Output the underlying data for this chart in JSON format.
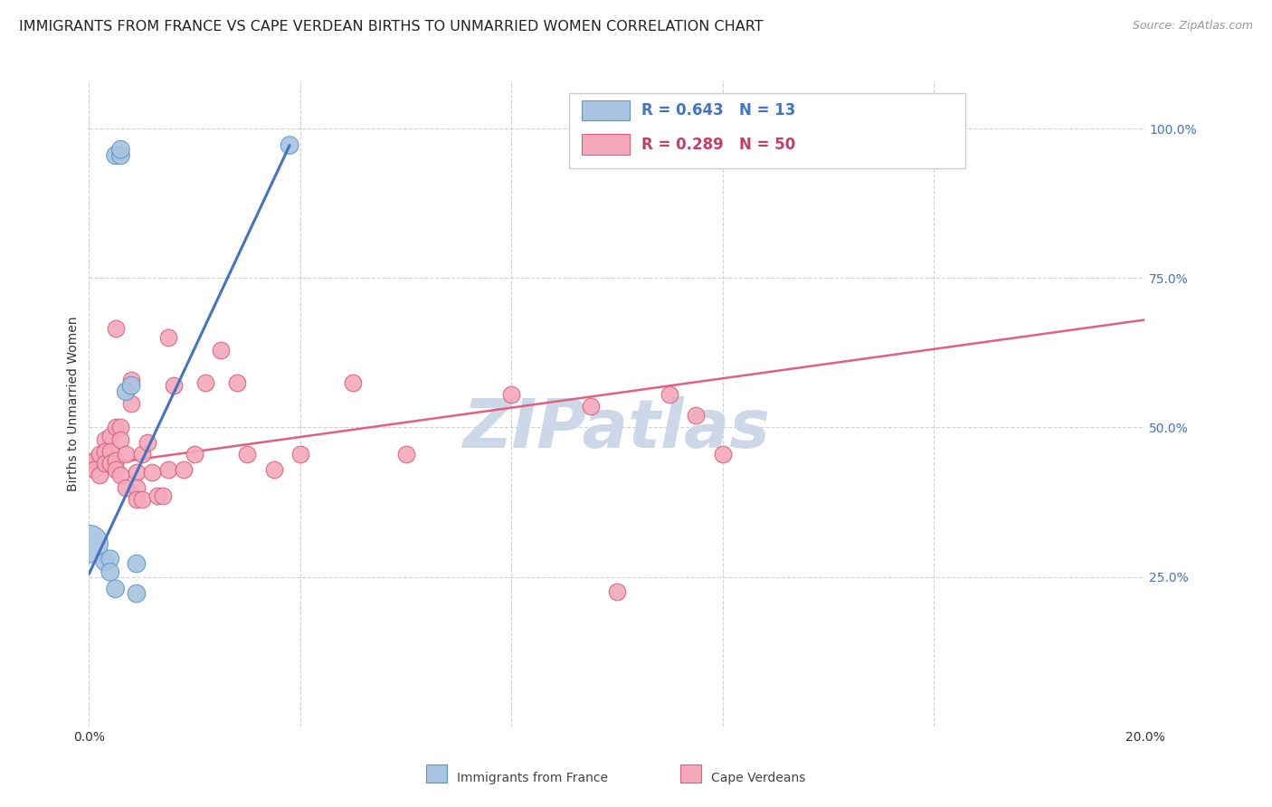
{
  "title": "IMMIGRANTS FROM FRANCE VS CAPE VERDEAN BIRTHS TO UNMARRIED WOMEN CORRELATION CHART",
  "source": "Source: ZipAtlas.com",
  "ylabel": "Births to Unmarried Women",
  "ytick_labels": [
    "100.0%",
    "75.0%",
    "50.0%",
    "25.0%"
  ],
  "xtick_positions": [
    0.0,
    0.04,
    0.08,
    0.12,
    0.16,
    0.2
  ],
  "ytick_positions": [
    1.0,
    0.75,
    0.5,
    0.25
  ],
  "xlim": [
    0.0,
    0.2
  ],
  "ylim": [
    0.0,
    1.08
  ],
  "france_R": 0.643,
  "france_N": 13,
  "capeverde_R": 0.289,
  "capeverde_N": 50,
  "france_color": "#a8c4e0",
  "france_edge": "#5a96c8",
  "capeverde_color": "#f4a8bc",
  "capeverde_edge": "#d8607a",
  "france_x": [
    0.0,
    0.003,
    0.004,
    0.004,
    0.005,
    0.005,
    0.006,
    0.006,
    0.007,
    0.008,
    0.009,
    0.009,
    0.038
  ],
  "france_y": [
    0.305,
    0.275,
    0.28,
    0.258,
    0.23,
    0.955,
    0.955,
    0.965,
    0.56,
    0.57,
    0.272,
    0.222,
    0.972
  ],
  "france_sizes": [
    900,
    200,
    200,
    200,
    200,
    200,
    200,
    200,
    200,
    200,
    200,
    200,
    200
  ],
  "capeverde_x": [
    0.0,
    0.001,
    0.001,
    0.002,
    0.002,
    0.003,
    0.003,
    0.003,
    0.004,
    0.004,
    0.004,
    0.005,
    0.005,
    0.005,
    0.005,
    0.006,
    0.006,
    0.006,
    0.007,
    0.007,
    0.008,
    0.008,
    0.009,
    0.009,
    0.009,
    0.01,
    0.01,
    0.011,
    0.012,
    0.013,
    0.014,
    0.015,
    0.015,
    0.016,
    0.018,
    0.02,
    0.022,
    0.025,
    0.028,
    0.03,
    0.035,
    0.04,
    0.05,
    0.06,
    0.08,
    0.095,
    0.1,
    0.11,
    0.115,
    0.12
  ],
  "capeverde_y": [
    0.44,
    0.445,
    0.43,
    0.455,
    0.42,
    0.48,
    0.46,
    0.44,
    0.485,
    0.46,
    0.44,
    0.665,
    0.5,
    0.445,
    0.43,
    0.5,
    0.48,
    0.42,
    0.455,
    0.4,
    0.58,
    0.54,
    0.425,
    0.4,
    0.38,
    0.455,
    0.38,
    0.475,
    0.425,
    0.385,
    0.385,
    0.65,
    0.43,
    0.57,
    0.43,
    0.455,
    0.575,
    0.63,
    0.575,
    0.455,
    0.43,
    0.455,
    0.575,
    0.455,
    0.555,
    0.535,
    0.225,
    0.555,
    0.52,
    0.455
  ],
  "blue_line_x": [
    0.0,
    0.038
  ],
  "blue_line_y": [
    0.255,
    0.972
  ],
  "pink_line_x": [
    0.0,
    0.2
  ],
  "pink_line_y": [
    0.435,
    0.68
  ],
  "legend_blue_text_color": "#4472c4",
  "legend_pink_text_color": "#c0406a",
  "watermark_text": "ZIPatlas",
  "watermark_color": "#ccd8e8",
  "background_color": "#ffffff",
  "grid_color": "#cccccc",
  "title_fontsize": 11.5,
  "axis_label_fontsize": 10,
  "tick_fontsize": 10,
  "legend_fontsize": 12
}
